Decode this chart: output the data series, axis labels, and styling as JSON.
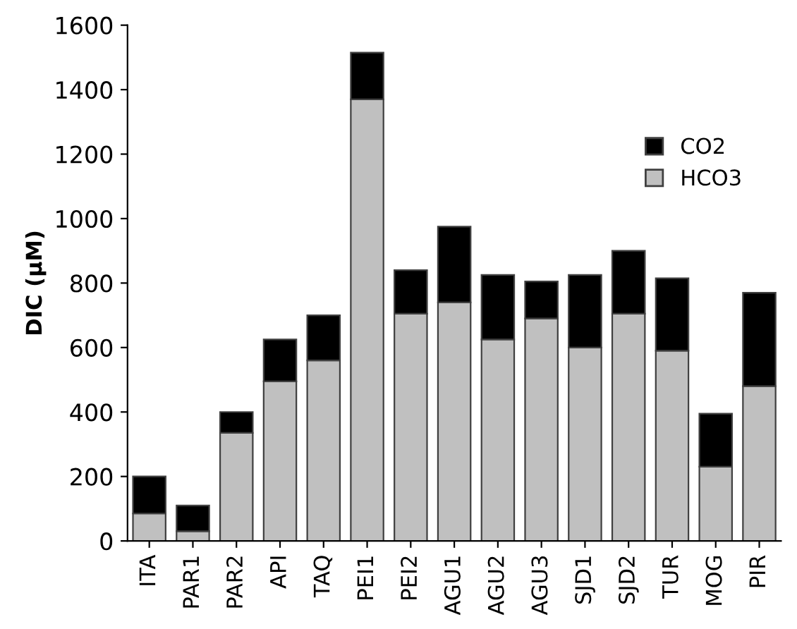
{
  "chart_data": {
    "type": "bar",
    "stacked": true,
    "ylabel": "DIC (μM)",
    "categories": [
      "ITA",
      "PAR1",
      "PAR2",
      "API",
      "TAQ",
      "PEI1",
      "PEI2",
      "AGU1",
      "AGU2",
      "AGU3",
      "SJD1",
      "SJD2",
      "TUR",
      "MOG",
      "PIR"
    ],
    "series": [
      {
        "name": "HCO3",
        "color": "#c0c0c0",
        "values": [
          85,
          30,
          335,
          495,
          560,
          1370,
          705,
          740,
          625,
          690,
          600,
          705,
          590,
          230,
          480
        ]
      },
      {
        "name": "CO2",
        "color": "#000000",
        "values": [
          115,
          80,
          65,
          130,
          140,
          145,
          135,
          235,
          200,
          115,
          225,
          195,
          225,
          165,
          290
        ]
      }
    ],
    "ylim": [
      0,
      1600
    ],
    "yticks": [
      0,
      200,
      400,
      600,
      800,
      1000,
      1200,
      1400,
      1600
    ],
    "grid": false,
    "legend": "top right"
  }
}
